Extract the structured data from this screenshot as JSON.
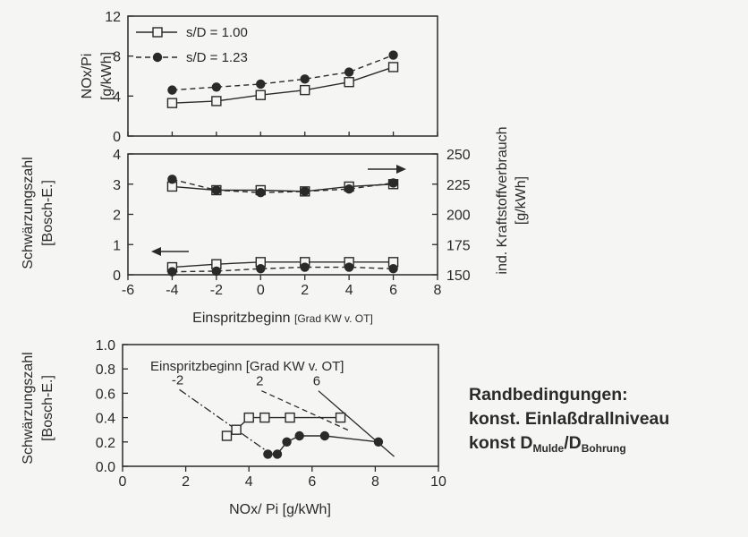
{
  "chart_data": [
    {
      "type": "line",
      "ylabel": [
        "NOx/Pi",
        "[g/kWh]"
      ],
      "ylim": [
        0,
        12
      ],
      "yticks": [
        0,
        4,
        8,
        12
      ],
      "x": [
        -4,
        -2,
        0,
        2,
        4,
        6
      ],
      "series": [
        {
          "name": "s/D = 1.00",
          "marker": "open-square",
          "linestyle": "solid",
          "values": [
            3.3,
            3.5,
            4.1,
            4.6,
            5.4,
            6.9
          ]
        },
        {
          "name": "s/D = 1.23",
          "marker": "filled-circle",
          "linestyle": "dashed",
          "values": [
            4.6,
            4.9,
            5.2,
            5.7,
            6.4,
            8.1
          ]
        }
      ],
      "legend": "top-left"
    },
    {
      "type": "line",
      "xlabel": "Einspritzbeginn",
      "xlabel_unit": "[Grad KW v. OT]",
      "xlim": [
        -6,
        8
      ],
      "xticks": [
        -6,
        -4,
        -2,
        0,
        2,
        4,
        6,
        8
      ],
      "ylabel_left": [
        "Schwärzungszahl",
        "[Bosch-E.]"
      ],
      "ylim_left": [
        0,
        4
      ],
      "yticks_left": [
        0,
        1,
        2,
        3,
        4
      ],
      "ylabel_right": [
        "ind. Kraftstoffverbrauch",
        "[g/kWh]"
      ],
      "ylim_right": [
        150,
        250
      ],
      "yticks_right": [
        150,
        175,
        200,
        225,
        250
      ],
      "x": [
        -4,
        -2,
        0,
        2,
        4,
        6
      ],
      "consumption": [
        {
          "series": "s/D = 1.00",
          "values": [
            223,
            220,
            220,
            219,
            223,
            225
          ]
        },
        {
          "series": "s/D = 1.23",
          "values": [
            229,
            220,
            218,
            219,
            221,
            226
          ]
        }
      ],
      "smoke": [
        {
          "series": "s/D = 1.00",
          "values": [
            0.25,
            0.35,
            0.42,
            0.42,
            0.42,
            0.42
          ]
        },
        {
          "series": "s/D = 1.23",
          "values": [
            0.1,
            0.12,
            0.2,
            0.25,
            0.25,
            0.2
          ]
        }
      ]
    },
    {
      "type": "scatter",
      "xlabel": "NOx/ Pi  [g/kWh]",
      "xlim": [
        0,
        10
      ],
      "xticks": [
        0,
        2,
        4,
        6,
        8,
        10
      ],
      "ylabel": [
        "Schwärzungszahl",
        "[Bosch-E.]"
      ],
      "ylim": [
        0,
        1
      ],
      "yticks": [
        "0.0",
        "0.2",
        "0.4",
        "0.6",
        "0.8",
        "1.0"
      ],
      "annotation": "Einspritzbeginn [Grad KW v. OT]",
      "series": [
        {
          "name": "s/D = 1.00",
          "points": [
            [
              3.3,
              0.25
            ],
            [
              3.6,
              0.3
            ],
            [
              4.0,
              0.4
            ],
            [
              4.5,
              0.4
            ],
            [
              5.3,
              0.4
            ],
            [
              6.9,
              0.4
            ]
          ]
        },
        {
          "name": "s/D = 1.23",
          "points": [
            [
              4.6,
              0.1
            ],
            [
              4.9,
              0.1
            ],
            [
              5.2,
              0.2
            ],
            [
              5.6,
              0.25
            ],
            [
              6.4,
              0.25
            ],
            [
              8.1,
              0.2
            ]
          ]
        }
      ],
      "injection_lines": [
        {
          "label": "-2",
          "style": "dash-dot",
          "from": [
            1.8,
            0.63
          ],
          "to": [
            4.7,
            0.1
          ]
        },
        {
          "label": "2",
          "style": "dashed",
          "from": [
            4.4,
            0.62
          ],
          "to": [
            7.2,
            0.29
          ]
        },
        {
          "label": "6",
          "style": "solid",
          "from": [
            6.2,
            0.62
          ],
          "to": [
            8.6,
            0.08
          ]
        }
      ]
    }
  ],
  "conditions": {
    "title": "Randbedingungen:",
    "line1": "konst. Einlaßdrallniveau",
    "line2_prefix": "konst D",
    "line2_sub1": "Mulde",
    "line2_sep": "/D",
    "line2_sub2": "Bohrung"
  },
  "colors": {
    "ink": "#2a2a2a",
    "background": "#f5f5f3"
  }
}
